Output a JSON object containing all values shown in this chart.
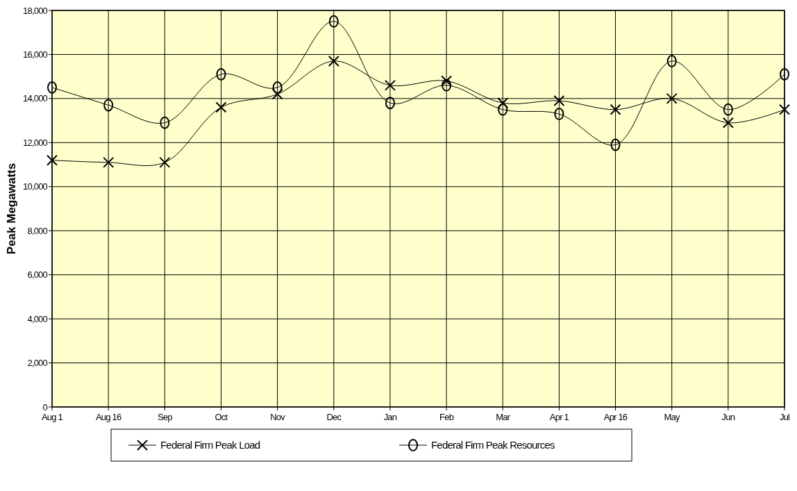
{
  "chart_data": {
    "type": "line",
    "ylabel": "Peak Megawatts",
    "categories": [
      "Aug 1",
      "Aug 16",
      "Sep",
      "Oct",
      "Nov",
      "Dec",
      "Jan",
      "Feb",
      "Mar",
      "Apr 1",
      "Apr 16",
      "May",
      "Jun",
      "Jul"
    ],
    "series": [
      {
        "name": "Federal Firm Peak Load",
        "color": "#000000",
        "marker": "cross",
        "values": [
          11200,
          11100,
          11100,
          13600,
          14200,
          15700,
          14600,
          14800,
          13800,
          13900,
          13500,
          14000,
          12900,
          13500
        ]
      },
      {
        "name": "Federal Firm Peak Resources",
        "color": "#000000",
        "marker": "circle",
        "values": [
          14500,
          13700,
          12900,
          15100,
          14500,
          17500,
          13800,
          14600,
          13500,
          13300,
          11900,
          15700,
          13500,
          15100
        ]
      }
    ],
    "ylim": [
      0,
      18000
    ],
    "yticks": [
      0,
      {
        "value": 2000,
        "label": "2,000"
      },
      {
        "value": 4000,
        "label": "4,000"
      },
      {
        "value": 6000,
        "label": "6,000"
      },
      {
        "value": 8000,
        "label": "8,000"
      },
      {
        "value": 10000,
        "label": "10,000"
      },
      {
        "value": 12000,
        "label": "12,000"
      },
      {
        "value": 14000,
        "label": "14,000"
      },
      {
        "value": 16000,
        "label": "16,000"
      },
      {
        "value": 18000,
        "label": "18,000"
      }
    ],
    "grid": true,
    "legend": "bottom",
    "line_style": "solid"
  }
}
